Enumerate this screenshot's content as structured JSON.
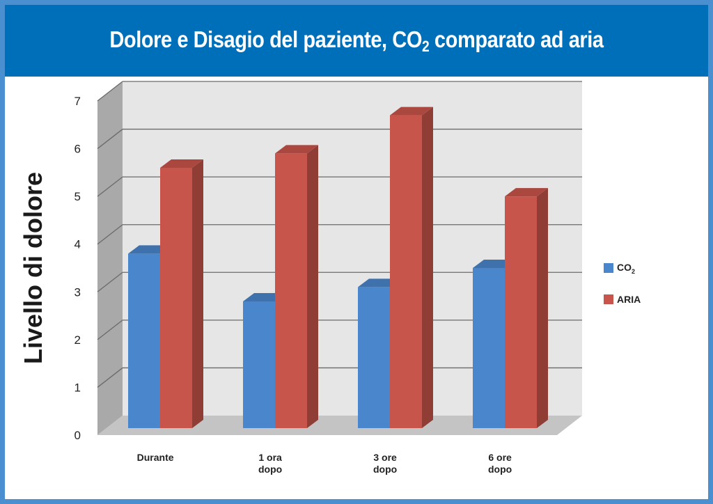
{
  "chart_data": {
    "type": "bar",
    "title": "Dolore e Disagio del paziente, CO2 comparato ad aria",
    "ylabel": "Livello di dolore",
    "xlabel": "",
    "categories": [
      [
        "Durante"
      ],
      [
        "1 ora",
        "dopo"
      ],
      [
        "3 ore",
        "dopo"
      ],
      [
        "6 ore",
        "dopo"
      ]
    ],
    "series": [
      {
        "name": "CO2",
        "values": [
          3.8,
          2.8,
          3.1,
          3.5
        ],
        "color": "#4a86cc"
      },
      {
        "name": "ARIA",
        "values": [
          5.6,
          5.9,
          6.7,
          5.0
        ],
        "color": "#c8554b"
      }
    ],
    "ylim": [
      0,
      7
    ],
    "yticks": [
      0,
      1,
      2,
      3,
      4,
      5,
      6,
      7
    ],
    "grid": true,
    "legend": "right",
    "style": "3d-column"
  },
  "title": {
    "main": "Dolore e Disagio del paziente, CO",
    "sub": "2",
    "rest": " comparato ad aria"
  },
  "legend": {
    "co2": {
      "main": "CO",
      "sub": "2"
    },
    "aria": {
      "label": "ARIA"
    }
  },
  "colors": {
    "header": "#006fb9",
    "border": "#4a8fd0",
    "co2": "#4a86cc",
    "aria": "#c8554b",
    "wall": "#e6e6e6",
    "floor": "#c4c4c4"
  }
}
